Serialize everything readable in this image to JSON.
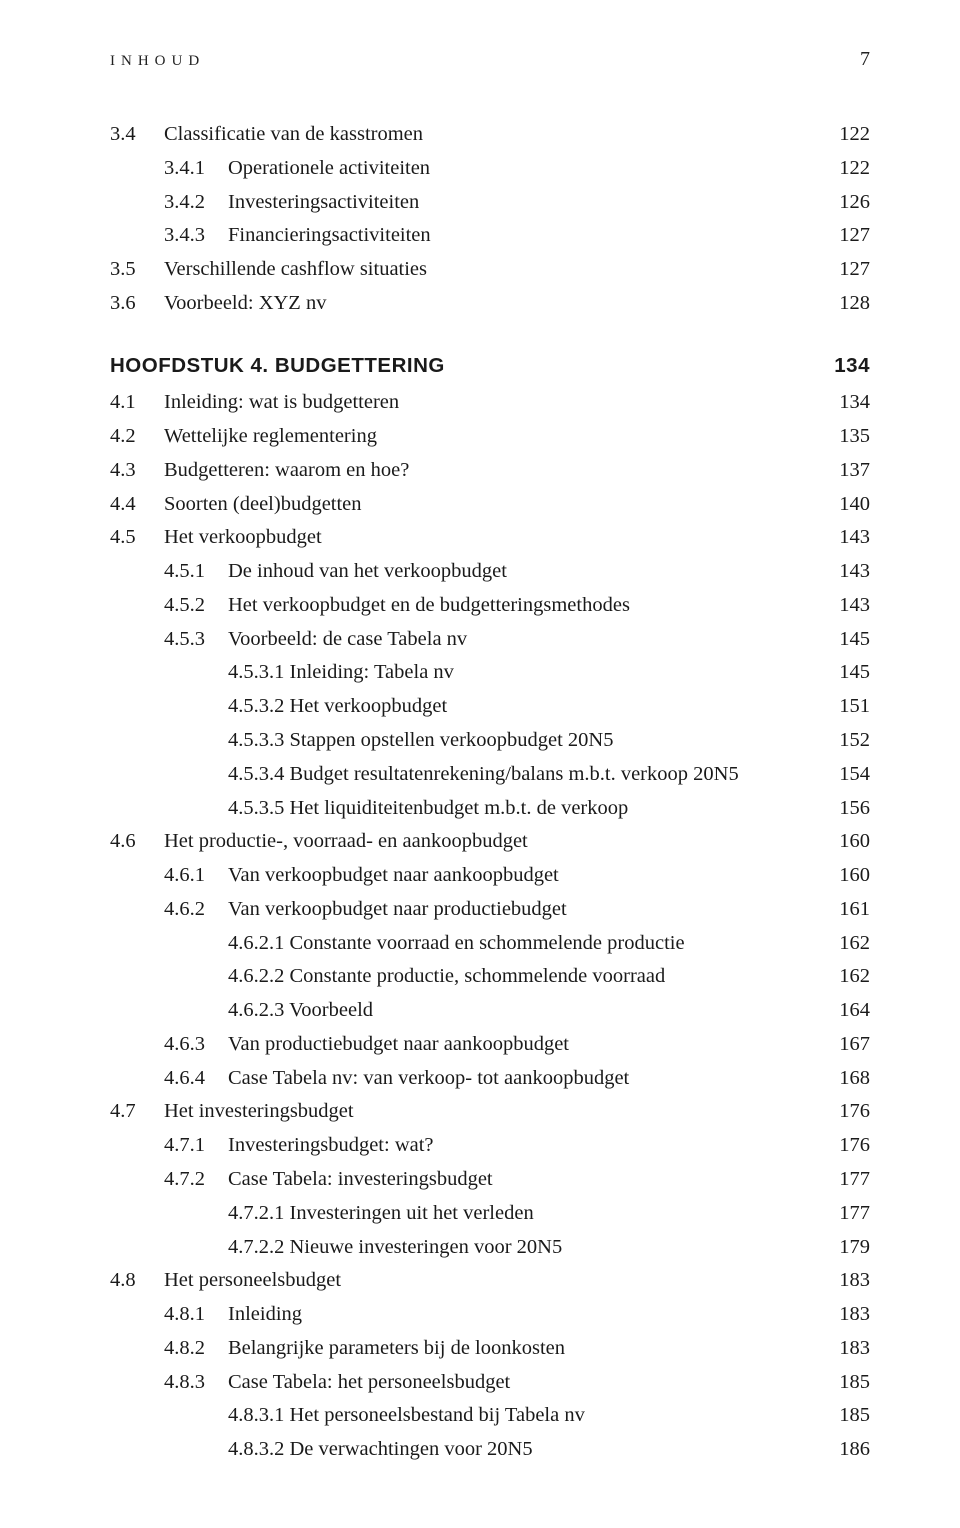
{
  "header": {
    "label": "inhoud",
    "page": "7"
  },
  "toc": [
    {
      "lvl": 1,
      "num": "3.4",
      "title": "Classificatie van de kasstromen",
      "page": "122"
    },
    {
      "lvl": 2,
      "num": "3.4.1",
      "title": "Operationele activiteiten",
      "page": "122"
    },
    {
      "lvl": 2,
      "num": "3.4.2",
      "title": "Investeringsactiviteiten",
      "page": "126"
    },
    {
      "lvl": 2,
      "num": "3.4.3",
      "title": "Financieringsactiviteiten",
      "page": "127"
    },
    {
      "lvl": 1,
      "num": "3.5",
      "title": "Verschillende cashflow situaties",
      "page": "127"
    },
    {
      "lvl": 1,
      "num": "3.6",
      "title": "Voorbeeld: XYZ nv",
      "page": "128"
    },
    {
      "lvl": 0,
      "num": "",
      "title": "Hoofdstuk 4. Budgettering",
      "page": "134"
    },
    {
      "lvl": 1,
      "num": "4.1",
      "title": "Inleiding: wat is budgetteren",
      "page": "134"
    },
    {
      "lvl": 1,
      "num": "4.2",
      "title": "Wettelijke reglementering",
      "page": "135"
    },
    {
      "lvl": 1,
      "num": "4.3",
      "title": "Budgetteren: waarom en hoe?",
      "page": "137"
    },
    {
      "lvl": 1,
      "num": "4.4",
      "title": "Soorten (deel)budgetten",
      "page": "140"
    },
    {
      "lvl": 1,
      "num": "4.5",
      "title": "Het verkoopbudget",
      "page": "143"
    },
    {
      "lvl": 2,
      "num": "4.5.1",
      "title": "De inhoud van het verkoopbudget",
      "page": "143"
    },
    {
      "lvl": 2,
      "num": "4.5.2",
      "title": "Het verkoopbudget en de budgetteringsmethodes",
      "page": "143"
    },
    {
      "lvl": 2,
      "num": "4.5.3",
      "title": "Voorbeeld: de case Tabela nv",
      "page": "145"
    },
    {
      "lvl": 3,
      "num": "",
      "title": "4.5.3.1 Inleiding: Tabela nv",
      "page": "145"
    },
    {
      "lvl": 3,
      "num": "",
      "title": "4.5.3.2 Het verkoopbudget",
      "page": "151"
    },
    {
      "lvl": 3,
      "num": "",
      "title": "4.5.3.3 Stappen opstellen verkoopbudget 20N5",
      "page": "152"
    },
    {
      "lvl": 3,
      "num": "",
      "title": "4.5.3.4 Budget resultatenrekening/balans m.b.t. verkoop 20N5",
      "page": "154"
    },
    {
      "lvl": 3,
      "num": "",
      "title": "4.5.3.5 Het liquiditeitenbudget m.b.t. de verkoop",
      "page": "156"
    },
    {
      "lvl": 1,
      "num": "4.6",
      "title": "Het productie-, voorraad- en aankoopbudget",
      "page": "160"
    },
    {
      "lvl": 2,
      "num": "4.6.1",
      "title": "Van verkoopbudget naar aankoopbudget",
      "page": "160"
    },
    {
      "lvl": 2,
      "num": "4.6.2",
      "title": "Van verkoopbudget naar productiebudget",
      "page": "161"
    },
    {
      "lvl": 3,
      "num": "",
      "title": "4.6.2.1 Constante voorraad en schommelende productie",
      "page": "162"
    },
    {
      "lvl": 3,
      "num": "",
      "title": "4.6.2.2 Constante productie, schommelende voorraad",
      "page": "162"
    },
    {
      "lvl": 3,
      "num": "",
      "title": "4.6.2.3 Voorbeeld",
      "page": "164"
    },
    {
      "lvl": 2,
      "num": "4.6.3",
      "title": "Van productiebudget naar aankoopbudget",
      "page": "167"
    },
    {
      "lvl": 2,
      "num": "4.6.4",
      "title": "Case Tabela nv: van verkoop- tot aankoopbudget",
      "page": "168"
    },
    {
      "lvl": 1,
      "num": "4.7",
      "title": "Het investeringsbudget",
      "page": "176"
    },
    {
      "lvl": 2,
      "num": "4.7.1",
      "title": "Investeringsbudget: wat?",
      "page": "176"
    },
    {
      "lvl": 2,
      "num": "4.7.2",
      "title": "Case Tabela: investeringsbudget",
      "page": "177"
    },
    {
      "lvl": 3,
      "num": "",
      "title": "4.7.2.1 Investeringen uit het verleden",
      "page": "177"
    },
    {
      "lvl": 3,
      "num": "",
      "title": "4.7.2.2 Nieuwe investeringen voor 20N5",
      "page": "179"
    },
    {
      "lvl": 1,
      "num": "4.8",
      "title": "Het personeelsbudget",
      "page": "183"
    },
    {
      "lvl": 2,
      "num": "4.8.1",
      "title": "Inleiding",
      "page": "183"
    },
    {
      "lvl": 2,
      "num": "4.8.2",
      "title": "Belangrijke parameters bij de loonkosten",
      "page": "183"
    },
    {
      "lvl": 2,
      "num": "4.8.3",
      "title": "Case Tabela: het personeelsbudget",
      "page": "185"
    },
    {
      "lvl": 3,
      "num": "",
      "title": "4.8.3.1 Het personeelsbestand bij Tabela nv",
      "page": "185"
    },
    {
      "lvl": 3,
      "num": "",
      "title": "4.8.3.2 De verwachtingen voor 20N5",
      "page": "186"
    }
  ]
}
